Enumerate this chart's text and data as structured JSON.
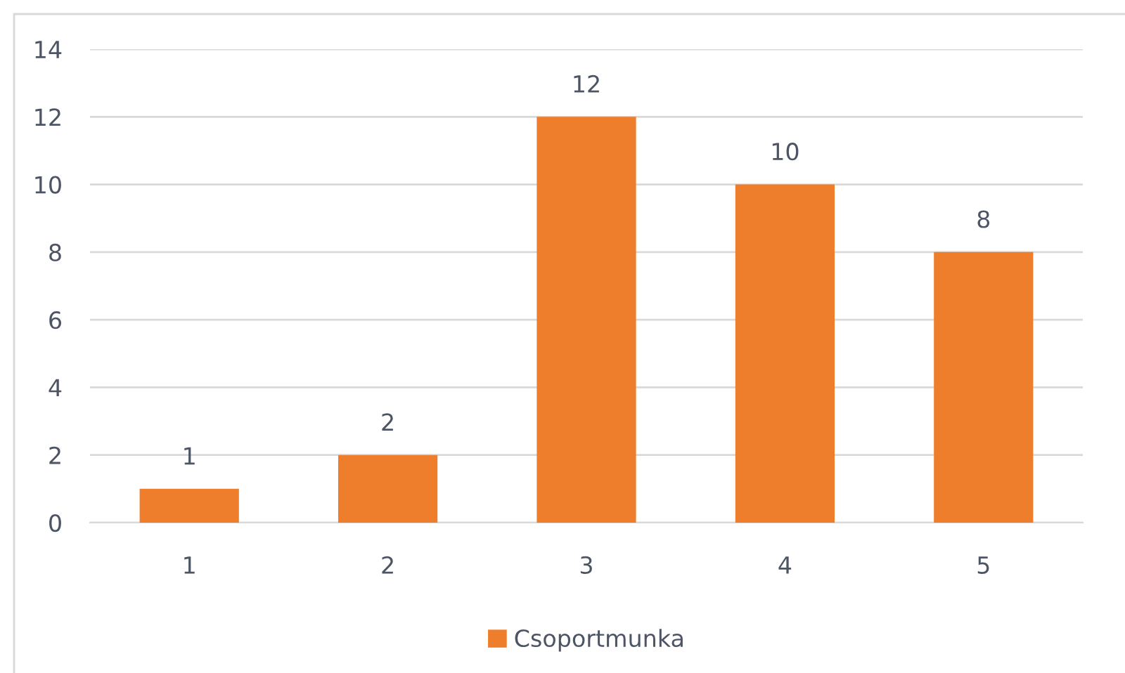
{
  "chart_data": {
    "type": "bar",
    "categories": [
      "1",
      "2",
      "3",
      "4",
      "5"
    ],
    "series": [
      {
        "name": "Csoportmunka",
        "color": "#ef7e2c",
        "values": [
          1,
          2,
          12,
          10,
          8
        ]
      }
    ],
    "ylim": [
      0,
      14
    ],
    "yticks": [
      0,
      2,
      4,
      6,
      8,
      10,
      12,
      14
    ],
    "grid": "y",
    "legend": "bottom",
    "data_labels": true
  }
}
